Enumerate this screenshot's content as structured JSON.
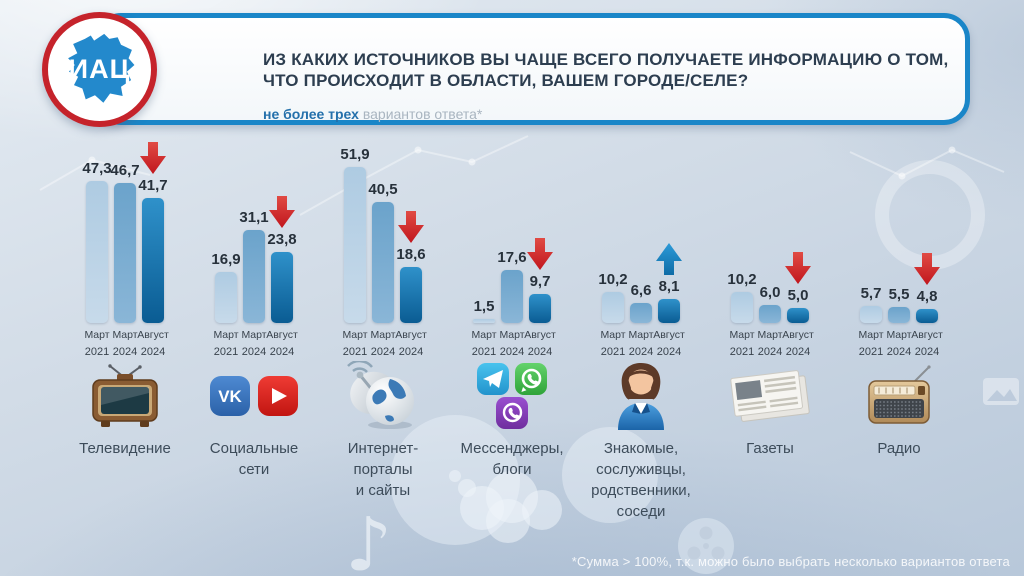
{
  "header": {
    "logo_text": "ИАЦ",
    "title_lines": [
      "ИЗ КАКИХ ИСТОЧНИКОВ ВЫ ЧАЩЕ ВСЕГО ПОЛУЧАЕТЕ ИНФОРМАЦИЮ О ТОМ,",
      "ЧТО ПРОИСХОДИТ В ОБЛАСТИ, ВАШЕМ ГОРОДЕ/СЕЛЕ?"
    ],
    "subtitle_bold": "не более трех",
    "subtitle_rest": " вариантов ответа*"
  },
  "footer": {
    "note": "*Сумма > 100%, т.к. можно было выбрать несколько вариантов ответа"
  },
  "chart_data": {
    "type": "bar",
    "title": "Из каких источников вы чаще всего получаете информацию о том, что происходит в области, вашем городе/селе?",
    "subtitle": "не более трех вариантов ответа*",
    "unit": "%",
    "ylim": [
      0,
      55
    ],
    "grid": false,
    "legend_position": "below-each-bar",
    "x_series": [
      {
        "name": "bar-mar-2021",
        "month": "Март",
        "year": "2021"
      },
      {
        "name": "bar-mar-2024",
        "month": "Март",
        "year": "2024"
      },
      {
        "name": "bar-aug-2024",
        "month": "Август",
        "year": "2024"
      }
    ],
    "groups": [
      {
        "category": "Телевидение",
        "label_lines": [
          "Телевидение"
        ],
        "icon": "tv-icon",
        "values": [
          47.3,
          46.7,
          41.7
        ],
        "value_labels": [
          "47,3",
          "46,7",
          "41,7"
        ],
        "trend": "down"
      },
      {
        "category": "Социальные сети",
        "label_lines": [
          "Социальные",
          "сети"
        ],
        "icon": "social-networks-icon",
        "values": [
          16.9,
          31.1,
          23.8
        ],
        "value_labels": [
          "16,9",
          "31,1",
          "23,8"
        ],
        "trend": "down"
      },
      {
        "category": "Интернет-порталы и сайты",
        "label_lines": [
          "Интернет-",
          "порталы",
          "и сайты"
        ],
        "icon": "internet-portals-icon",
        "values": [
          51.9,
          40.5,
          18.6
        ],
        "value_labels": [
          "51,9",
          "40,5",
          "18,6"
        ],
        "trend": "down"
      },
      {
        "category": "Мессенджеры, блоги",
        "label_lines": [
          "Мессенджеры,",
          "блоги"
        ],
        "icon": "messengers-icon",
        "values": [
          1.5,
          17.6,
          9.7
        ],
        "value_labels": [
          "1,5",
          "17,6",
          "9,7"
        ],
        "trend": "down"
      },
      {
        "category": "Знакомые, сослуживцы, родственники, соседи",
        "label_lines": [
          "Знакомые,",
          "сослуживцы,",
          "родственники,",
          "соседи"
        ],
        "icon": "acquaintances-icon",
        "values": [
          10.2,
          6.6,
          8.1
        ],
        "value_labels": [
          "10,2",
          "6,6",
          "8,1"
        ],
        "trend": "up"
      },
      {
        "category": "Газеты",
        "label_lines": [
          "Газеты"
        ],
        "icon": "newspaper-icon",
        "values": [
          10.2,
          6.0,
          5.0
        ],
        "value_labels": [
          "10,2",
          "6,0",
          "5,0"
        ],
        "trend": "down"
      },
      {
        "category": "Радио",
        "label_lines": [
          "Радио"
        ],
        "icon": "radio-icon",
        "values": [
          5.7,
          5.5,
          4.8
        ],
        "value_labels": [
          "5,7",
          "5,5",
          "4,8"
        ],
        "trend": "down"
      }
    ],
    "colors": {
      "bar_gradients": [
        [
          "#aecbe2",
          "#c7daea"
        ],
        [
          "#6ba3cb",
          "#8ab6d7"
        ],
        [
          "#2f91ca",
          "#0a5c93"
        ]
      ],
      "down_arrow": "#c1161d",
      "up_arrow": "#0e6ca6",
      "header_border": "#1a86c8",
      "logo_border": "#c5232b",
      "logo_map": "#2389cc",
      "title_text": "#2d3e50"
    },
    "decor_icons": [
      "thought-bubble",
      "music-note",
      "film-reel",
      "globe-silhouette",
      "network-nodes"
    ]
  }
}
